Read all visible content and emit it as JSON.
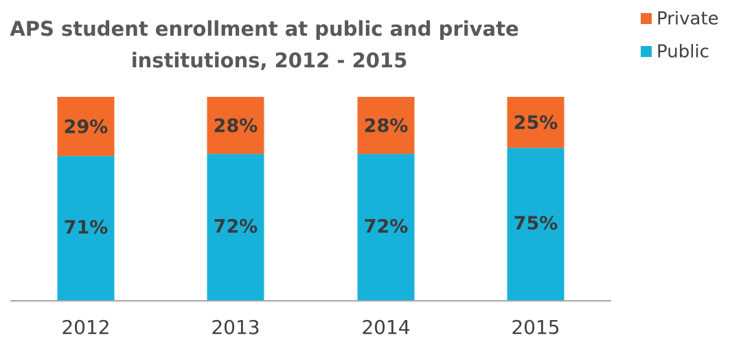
{
  "chart_data": {
    "type": "stacked_bar",
    "title": [
      "APS student enrollment at public and private",
      "institutions, 2012 - 2015"
    ],
    "categories": [
      "2012",
      "2013",
      "2014",
      "2015"
    ],
    "series": [
      {
        "name": "Public",
        "color": "#17b2d9",
        "values": [
          71,
          72,
          72,
          75
        ],
        "value_labels": [
          "71%",
          "72%",
          "72%",
          "75%"
        ]
      },
      {
        "name": "Private",
        "color": "#f26b2b",
        "values": [
          29,
          28,
          28,
          25
        ],
        "value_labels": [
          "29%",
          "28%",
          "28%",
          "25%"
        ]
      }
    ],
    "ylim": [
      0,
      100
    ],
    "legend": "top-right"
  }
}
